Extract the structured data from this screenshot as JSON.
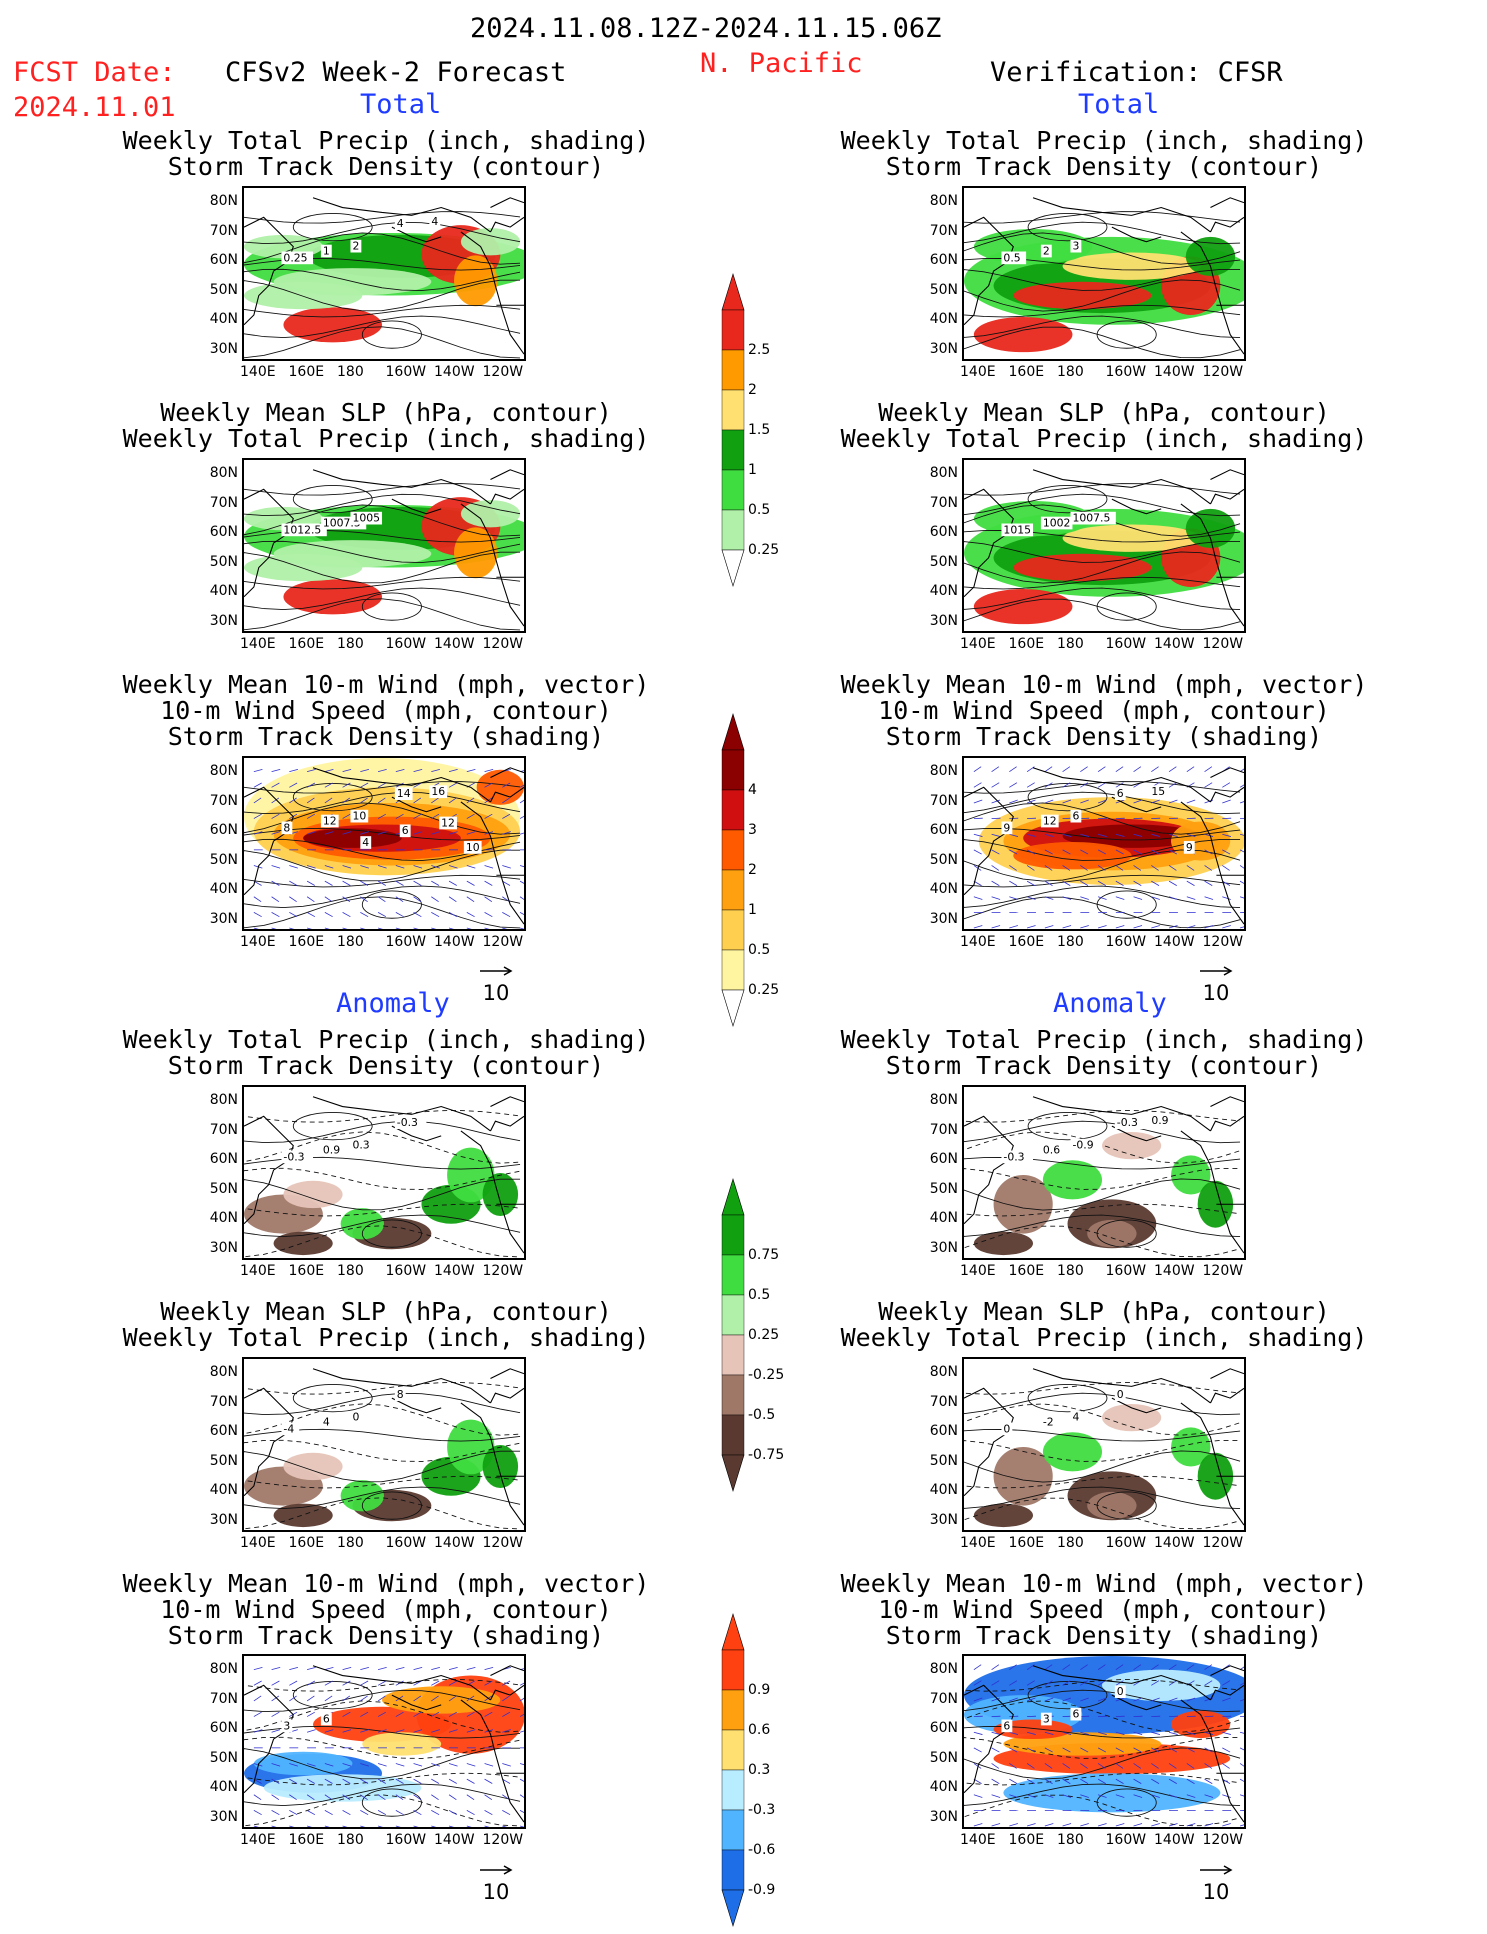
{
  "header": {
    "period": "2024.11.08.12Z-2024.11.15.06Z",
    "fcst_label": "FCST Date:",
    "fcst_date": "2024.11.01",
    "forecast_title": "CFSv2 Week-2 Forecast",
    "region": "N. Pacific",
    "verification_title": "Verification: CFSR"
  },
  "sections": {
    "total": "Total",
    "anomaly": "Anomaly"
  },
  "titles": {
    "precip_storm": [
      "Weekly Total Precip (inch, shading)",
      "Storm Track Density (contour)"
    ],
    "slp_precip": [
      "Weekly Mean SLP (hPa, contour)",
      "Weekly Total Precip (inch, shading)"
    ],
    "wind_storm": [
      "Weekly Mean 10-m Wind (mph, vector)",
      "10-m Wind Speed (mph, contour)",
      "Storm Track Density (shading)"
    ]
  },
  "axes": {
    "lat_ticks": [
      "80N",
      "70N",
      "60N",
      "50N",
      "40N",
      "30N"
    ],
    "lon_ticks": [
      "140E",
      "160E",
      "180",
      "160W",
      "140W",
      "120W"
    ]
  },
  "vector_ref": "10",
  "colorbars": {
    "precip_total": [
      "2.5",
      "2",
      "1.5",
      "1",
      "0.5",
      "0.25"
    ],
    "storm_total": [
      "4",
      "3",
      "2",
      "1",
      "0.5",
      "0.25"
    ],
    "precip_anom": [
      "0.75",
      "0.5",
      "0.25",
      "-0.25",
      "-0.5",
      "-0.75"
    ],
    "storm_anom": [
      "0.9",
      "0.6",
      "0.3",
      "-0.3",
      "-0.6",
      "-0.9"
    ],
    "colors": {
      "precip_total": [
        "#e8281c",
        "#ff9a00",
        "#ffe070",
        "#10a010",
        "#40dd40",
        "#b0f0a8"
      ],
      "storm_total": [
        "#8b0000",
        "#d01010",
        "#ff5a00",
        "#ffa010",
        "#ffd050",
        "#fff4a0"
      ],
      "precip_anom": [
        "#10a010",
        "#40dd40",
        "#b0f0a8",
        "#e6c4b8",
        "#a07868",
        "#5a3a30"
      ],
      "storm_anom": [
        "#ff4010",
        "#ffa010",
        "#ffe070",
        "#b8ecff",
        "#50b4ff",
        "#1e6ee8"
      ]
    }
  },
  "contour_labels": {
    "r1_left": [
      "0.25",
      "1",
      "2",
      "4",
      "4"
    ],
    "r1_right": [
      "0.5",
      "2",
      "3"
    ],
    "r2_left": [
      "1012.5",
      "1007.5",
      "1005"
    ],
    "r2_right": [
      "1015",
      "1002",
      "1007.5"
    ],
    "r3_left": [
      "8",
      "12",
      "10",
      "14",
      "16",
      "10",
      "12",
      "6",
      "4"
    ],
    "r3_right": [
      "9",
      "12",
      "6",
      "6",
      "15",
      "9"
    ],
    "r4_left": [
      "-0.3",
      "0.9",
      "0.3",
      "-0.3"
    ],
    "r4_right": [
      "-0.3",
      "0.6",
      "-0.9",
      "-0.3",
      "0.9"
    ],
    "r5_left": [
      "-4",
      "4",
      "0",
      "8"
    ],
    "r5_right": [
      "0",
      "-2",
      "4",
      "0"
    ],
    "r6_left": [
      "3",
      "6"
    ],
    "r6_right": [
      "6",
      "3",
      "6",
      "0"
    ]
  }
}
